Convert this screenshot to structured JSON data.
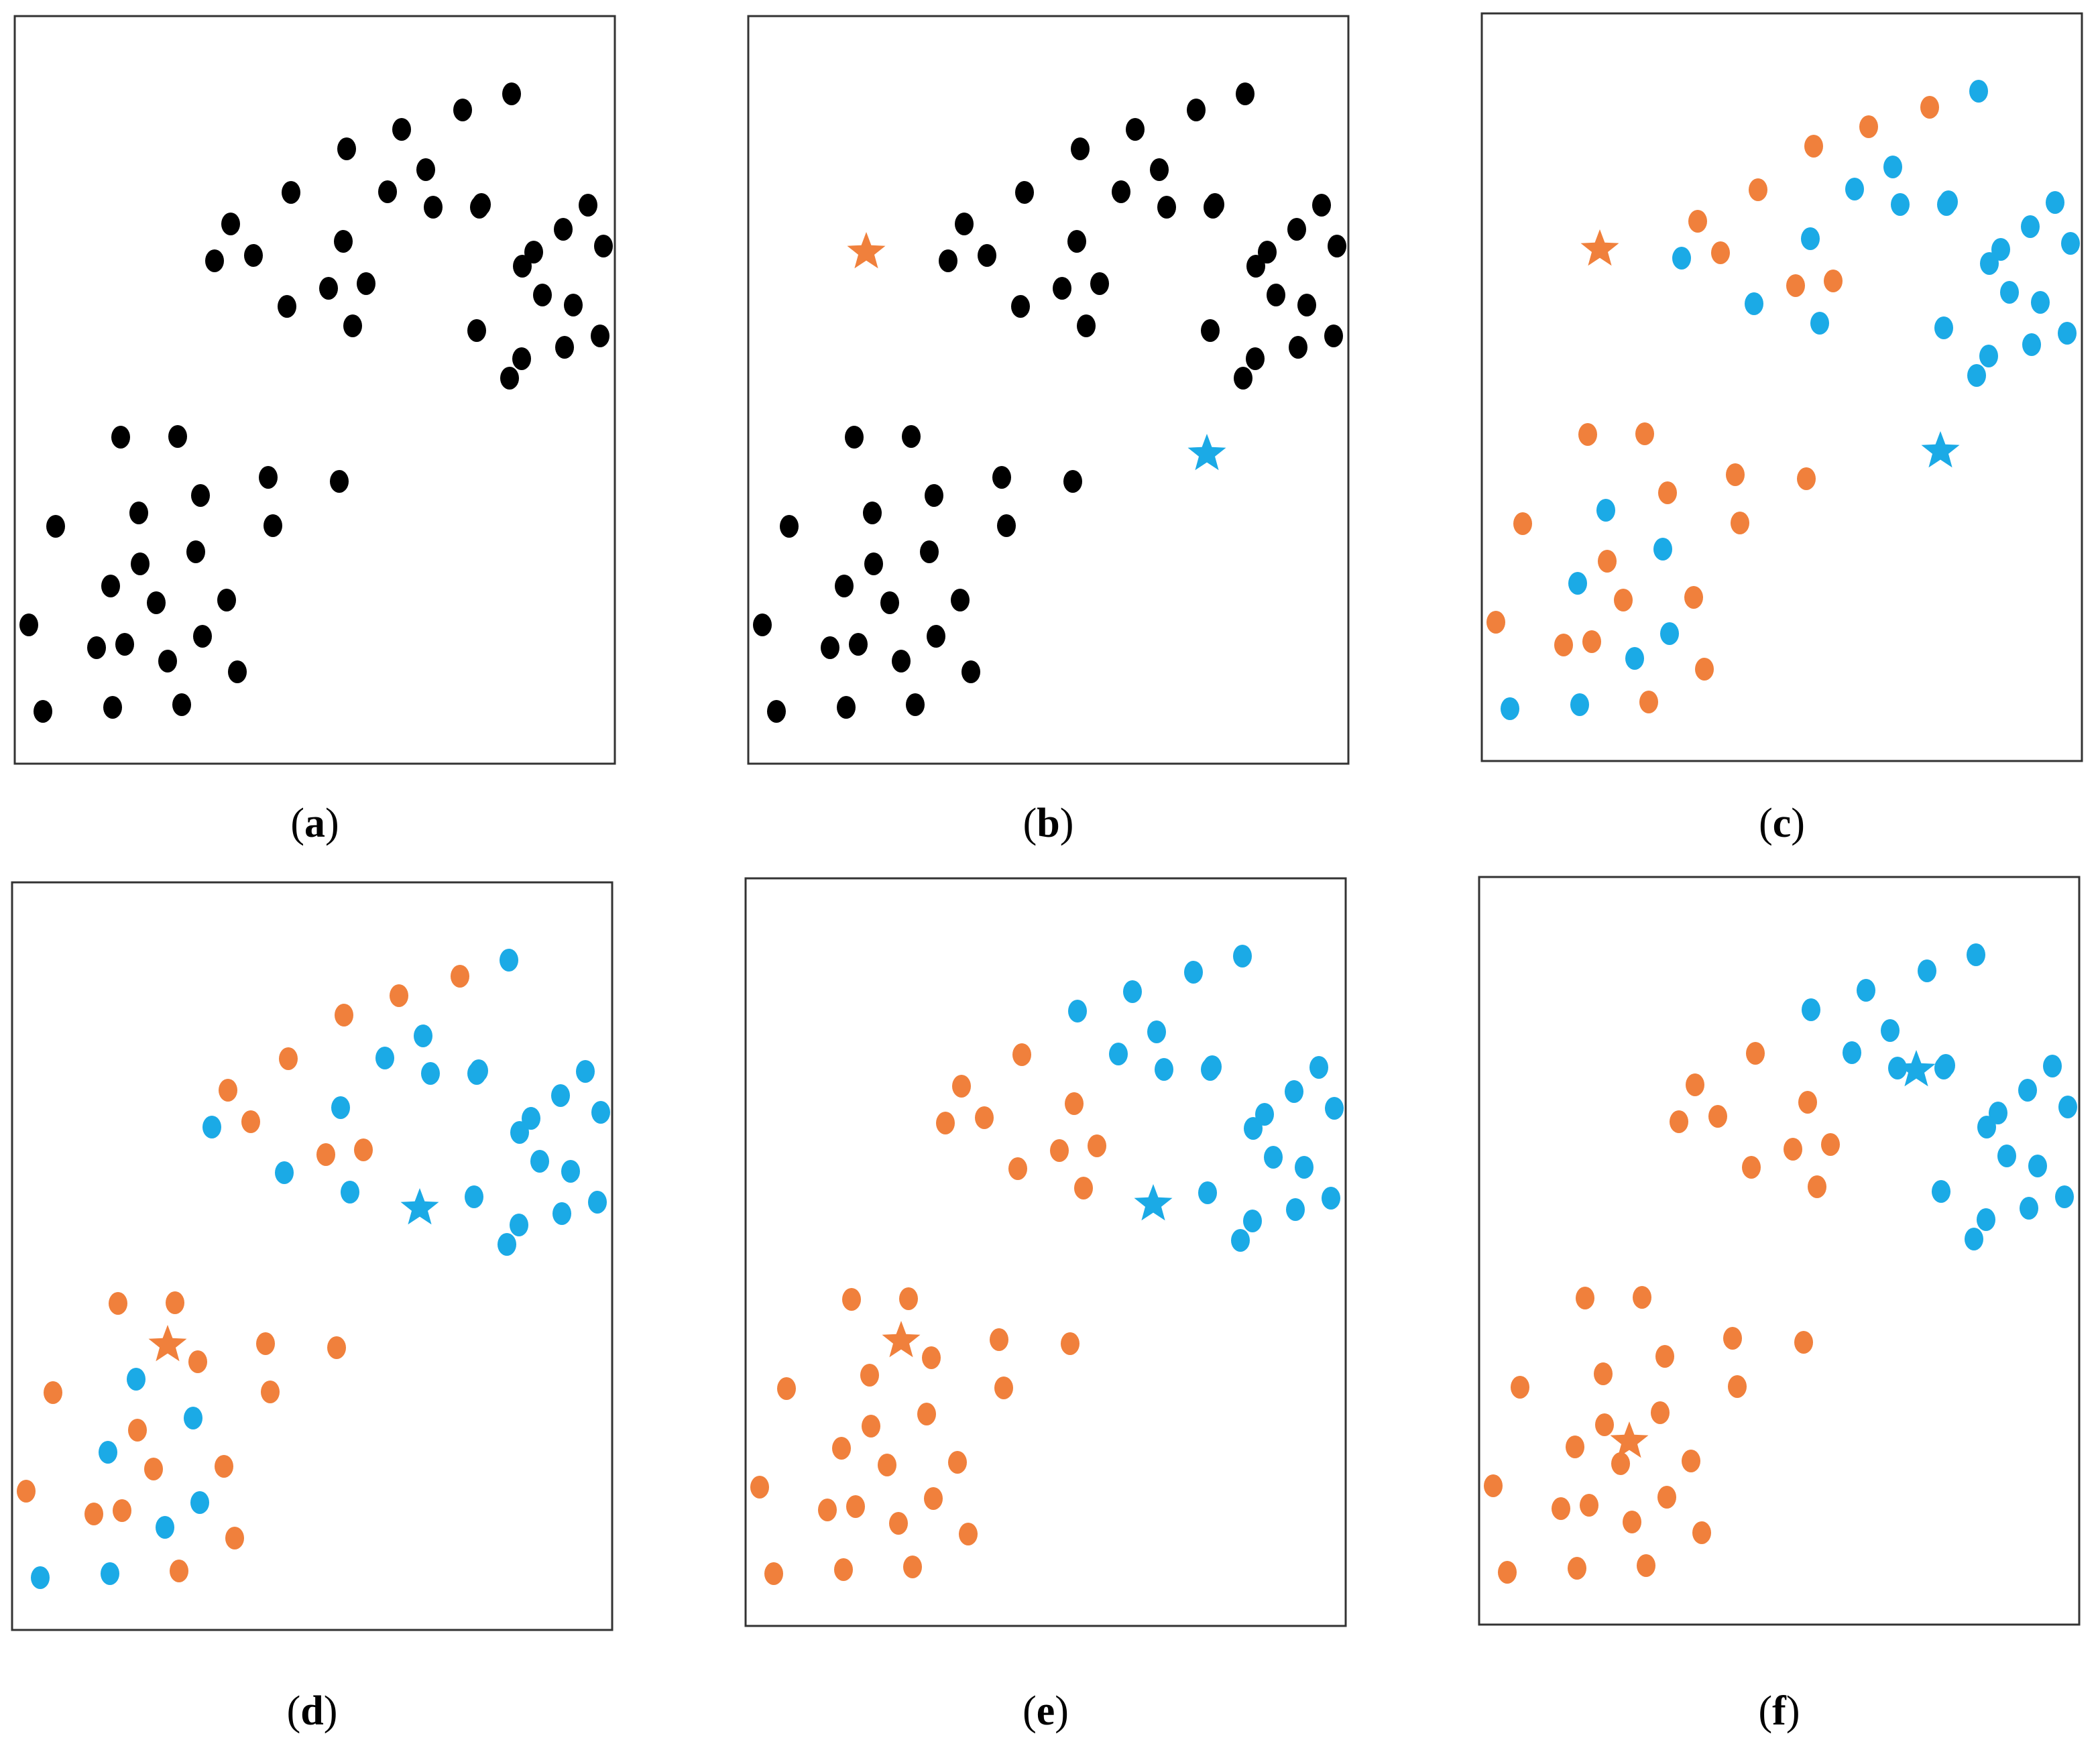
{
  "colors": {
    "point": "#000000",
    "cluster1": "#F0803C",
    "cluster2": "#1BAAE6"
  },
  "panels": [
    {
      "letter": "a",
      "points_a": [
        "c0",
        "c0",
        "c0",
        "c0",
        "c0",
        "c0",
        "c0",
        "c0",
        "c0",
        "c0",
        "c0",
        "c0",
        "c0",
        "c0",
        "c0",
        "c0",
        "c0",
        "c0",
        "c0",
        "c0",
        "c0",
        "c0",
        "c0",
        "c0",
        "c0",
        "c0",
        "c0",
        "c0",
        "c0",
        "c0",
        "c0"
      ],
      "points_b": [
        "c0",
        "c0",
        "c0",
        "c0",
        "c0",
        "c0",
        "c0",
        "c0",
        "c0",
        "c0",
        "c0",
        "c0",
        "c0",
        "c0",
        "c0",
        "c0",
        "c0",
        "c0",
        "c0",
        "c0",
        "c0"
      ],
      "centroids": []
    },
    {
      "letter": "b",
      "points_a": [
        "c0",
        "c0",
        "c0",
        "c0",
        "c0",
        "c0",
        "c0",
        "c0",
        "c0",
        "c0",
        "c0",
        "c0",
        "c0",
        "c0",
        "c0",
        "c0",
        "c0",
        "c0",
        "c0",
        "c0",
        "c0",
        "c0",
        "c0",
        "c0",
        "c0",
        "c0",
        "c0",
        "c0",
        "c0",
        "c0",
        "c0"
      ],
      "points_b": [
        "c0",
        "c0",
        "c0",
        "c0",
        "c0",
        "c0",
        "c0",
        "c0",
        "c0",
        "c0",
        "c0",
        "c0",
        "c0",
        "c0",
        "c0",
        "c0",
        "c0",
        "c0",
        "c0",
        "c0",
        "c0"
      ],
      "centroids": [
        {
          "color": "c1",
          "pos": "b1"
        },
        {
          "color": "c2",
          "pos": "b2"
        }
      ]
    },
    {
      "letter": "c",
      "points_a": [
        "c1",
        "c1",
        "c1",
        "c1",
        "c1",
        "c2",
        "c1",
        "c1",
        "c1",
        "c2",
        "c2",
        "c1",
        "c1",
        "c2",
        "c1",
        "c1",
        "c1",
        "c2",
        "c1",
        "c2",
        "c2",
        "c1",
        "c1",
        "c1",
        "c2",
        "c2",
        "c1",
        "c2",
        "c1",
        "c1",
        "c2"
      ],
      "points_b": [
        "c1",
        "c1",
        "c2",
        "c1",
        "c2",
        "c2",
        "c2",
        "c2",
        "c2",
        "c2",
        "c2",
        "c2",
        "c2",
        "c2",
        "c2",
        "c2",
        "c2",
        "c2",
        "c2",
        "c2",
        "c2"
      ],
      "centroids": [
        {
          "color": "c1",
          "pos": "b1"
        },
        {
          "color": "c2",
          "pos": "b2"
        }
      ]
    },
    {
      "letter": "d",
      "points_a": [
        "c1",
        "c1",
        "c1",
        "c1",
        "c1",
        "c2",
        "c1",
        "c1",
        "c1",
        "c2",
        "c2",
        "c1",
        "c1",
        "c2",
        "c1",
        "c1",
        "c1",
        "c2",
        "c1",
        "c2",
        "c2",
        "c1",
        "c1",
        "c1",
        "c2",
        "c2",
        "c1",
        "c2",
        "c1",
        "c1",
        "c2"
      ],
      "points_b": [
        "c1",
        "c1",
        "c2",
        "c1",
        "c2",
        "c2",
        "c2",
        "c2",
        "c2",
        "c2",
        "c2",
        "c2",
        "c2",
        "c2",
        "c2",
        "c2",
        "c2",
        "c2",
        "c2",
        "c2",
        "c2"
      ],
      "centroids": [
        {
          "color": "c1",
          "pos": "d1"
        },
        {
          "color": "c2",
          "pos": "d2"
        }
      ]
    },
    {
      "letter": "e",
      "points_a": [
        "c1",
        "c1",
        "c1",
        "c1",
        "c1",
        "c1",
        "c1",
        "c1",
        "c1",
        "c1",
        "c1",
        "c1",
        "c1",
        "c1",
        "c1",
        "c1",
        "c1",
        "c1",
        "c1",
        "c1",
        "c1",
        "c1",
        "c1",
        "c1",
        "c1",
        "c1",
        "c1",
        "c1",
        "c1",
        "c1",
        "c1"
      ],
      "points_b": [
        "c2",
        "c2",
        "c2",
        "c2",
        "c2",
        "c2",
        "c2",
        "c2",
        "c2",
        "c2",
        "c2",
        "c2",
        "c2",
        "c2",
        "c2",
        "c2",
        "c2",
        "c2",
        "c2",
        "c2",
        "c2"
      ],
      "centroids": [
        {
          "color": "c1",
          "pos": "d1"
        },
        {
          "color": "c2",
          "pos": "d2"
        }
      ]
    },
    {
      "letter": "f",
      "points_a": [
        "c1",
        "c1",
        "c1",
        "c1",
        "c1",
        "c1",
        "c1",
        "c1",
        "c1",
        "c1",
        "c1",
        "c1",
        "c1",
        "c1",
        "c1",
        "c1",
        "c1",
        "c1",
        "c1",
        "c1",
        "c1",
        "c1",
        "c1",
        "c1",
        "c1",
        "c1",
        "c1",
        "c1",
        "c1",
        "c1",
        "c1"
      ],
      "points_b": [
        "c2",
        "c2",
        "c2",
        "c2",
        "c2",
        "c2",
        "c2",
        "c2",
        "c2",
        "c2",
        "c2",
        "c2",
        "c2",
        "c2",
        "c2",
        "c2",
        "c2",
        "c2",
        "c2",
        "c2",
        "c2"
      ],
      "centroids": [
        {
          "color": "c1",
          "pos": "f1"
        },
        {
          "color": "c2",
          "pos": "f2"
        }
      ]
    }
  ]
}
